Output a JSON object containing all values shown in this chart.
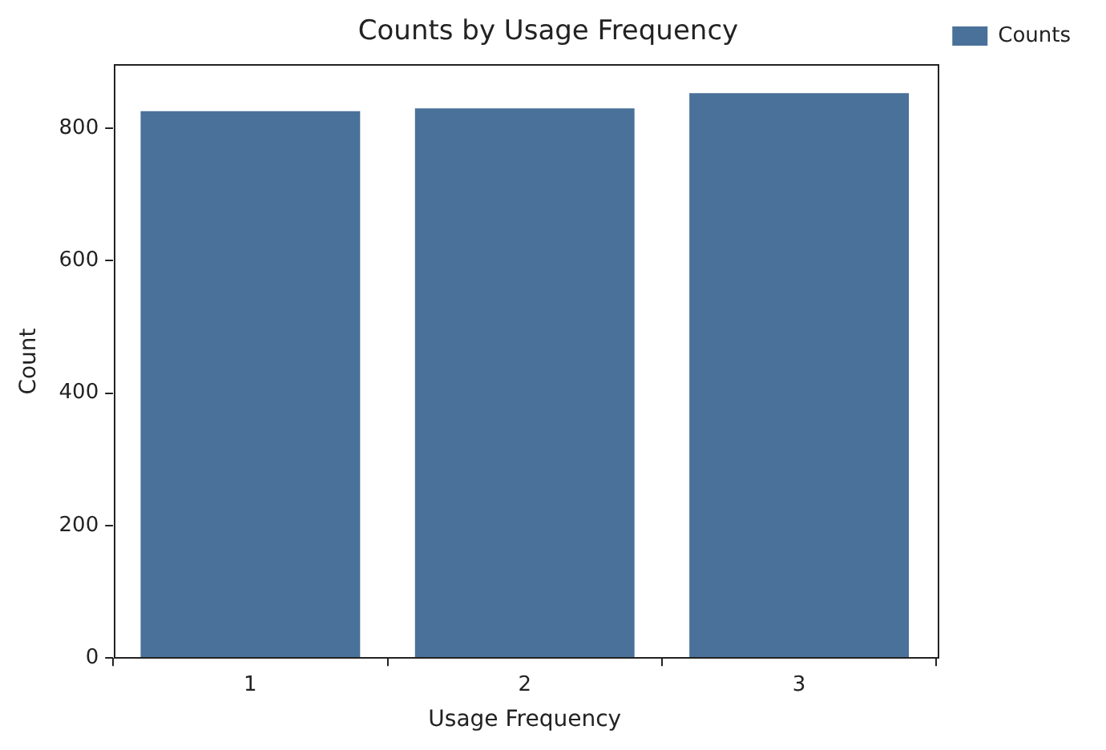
{
  "chart_data": {
    "type": "bar",
    "title": "Counts by Usage Frequency",
    "xlabel": "Usage Frequency",
    "ylabel": "Count",
    "categories": [
      "1",
      "2",
      "3"
    ],
    "series": [
      {
        "name": "Counts",
        "color": "#4a7199",
        "values": [
          826,
          830,
          853
        ]
      }
    ],
    "ylim": [
      0,
      896
    ],
    "yticks": [
      0,
      200,
      400,
      600,
      800
    ],
    "legend": "top right"
  }
}
